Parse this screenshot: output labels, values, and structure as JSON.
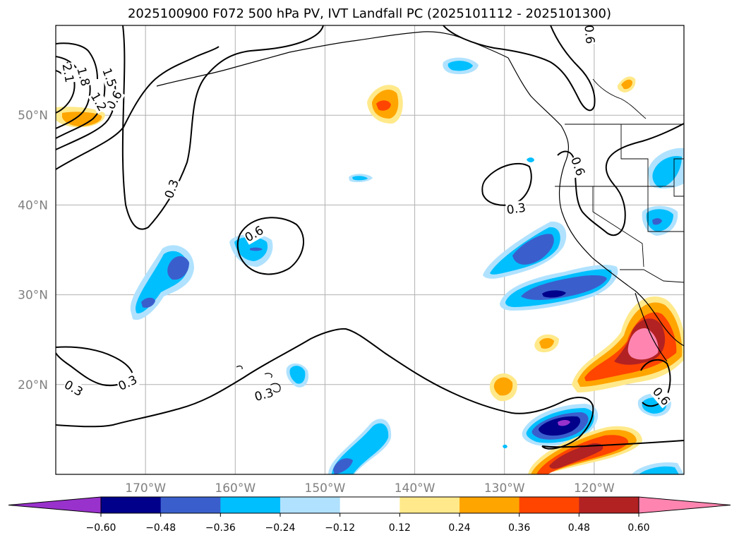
{
  "title": "2025100900 F072 500 hPa PV, IVT Landfall PC (2025101112 - 2025101300)",
  "chart_data": {
    "type": "contour-map",
    "title": "2025100900 F072 500 hPa PV, IVT Landfall PC (2025101112 - 2025101300)",
    "lon_range": [
      -180,
      -110
    ],
    "lat_range": [
      10,
      60
    ],
    "lat_ticks": [
      {
        "value": 20,
        "label": "20°N"
      },
      {
        "value": 30,
        "label": "30°N"
      },
      {
        "value": 40,
        "label": "40°N"
      },
      {
        "value": 50,
        "label": "50°N"
      }
    ],
    "lon_ticks": [
      {
        "value": -170,
        "label": "170°W"
      },
      {
        "value": -160,
        "label": "160°W"
      },
      {
        "value": -150,
        "label": "150°W"
      },
      {
        "value": -140,
        "label": "140°W"
      },
      {
        "value": -130,
        "label": "130°W"
      },
      {
        "value": -120,
        "label": "120°W"
      }
    ],
    "grid": true,
    "colorbar": {
      "extend": "both",
      "boundaries": [
        -0.6,
        -0.48,
        -0.36,
        -0.24,
        -0.12,
        0.12,
        0.24,
        0.36,
        0.48,
        0.6
      ],
      "tick_labels": [
        "−0.60",
        "−0.48",
        "−0.36",
        "−0.24",
        "−0.12",
        "0.12",
        "0.24",
        "0.36",
        "0.48",
        "0.60"
      ],
      "colors": [
        "#9932cc",
        "#00008b",
        "#3a5fcd",
        "#00bfff",
        "#b0e2ff",
        "#ffffff",
        "#ffe98a",
        "#ffa500",
        "#ff4500",
        "#b22222",
        "#ff85b0"
      ]
    },
    "contour_labels": [
      {
        "text": "0.3",
        "lon": -167.1,
        "lat": 41.8,
        "angle": -70
      },
      {
        "text": "0.3",
        "lon": -128.7,
        "lat": 39.6,
        "angle": -8
      },
      {
        "text": "0.3",
        "lon": -178.0,
        "lat": 19.6,
        "angle": 30
      },
      {
        "text": "0.3",
        "lon": -172.0,
        "lat": 20.2,
        "angle": -25
      },
      {
        "text": "0.3",
        "lon": -156.8,
        "lat": 18.9,
        "angle": -15
      },
      {
        "text": "0.6",
        "lon": -157.9,
        "lat": 36.8,
        "angle": -30
      },
      {
        "text": "0.6",
        "lon": -173.5,
        "lat": 51.7,
        "angle": -60
      },
      {
        "text": "0.6",
        "lon": -120.5,
        "lat": 59.0,
        "angle": 85
      },
      {
        "text": "0.6",
        "lon": -121.8,
        "lat": 44.3,
        "angle": 70
      },
      {
        "text": "0.6",
        "lon": -112.5,
        "lat": 18.7,
        "angle": 50
      },
      {
        "text": "2.1",
        "lon": -178.6,
        "lat": 54.7,
        "angle": 80
      },
      {
        "text": "1.8",
        "lon": -176.9,
        "lat": 54.3,
        "angle": 75
      },
      {
        "text": "1.5",
        "lon": -174.0,
        "lat": 54.2,
        "angle": 70
      },
      {
        "text": "1.2",
        "lon": -175.2,
        "lat": 51.5,
        "angle": 60
      }
    ]
  }
}
